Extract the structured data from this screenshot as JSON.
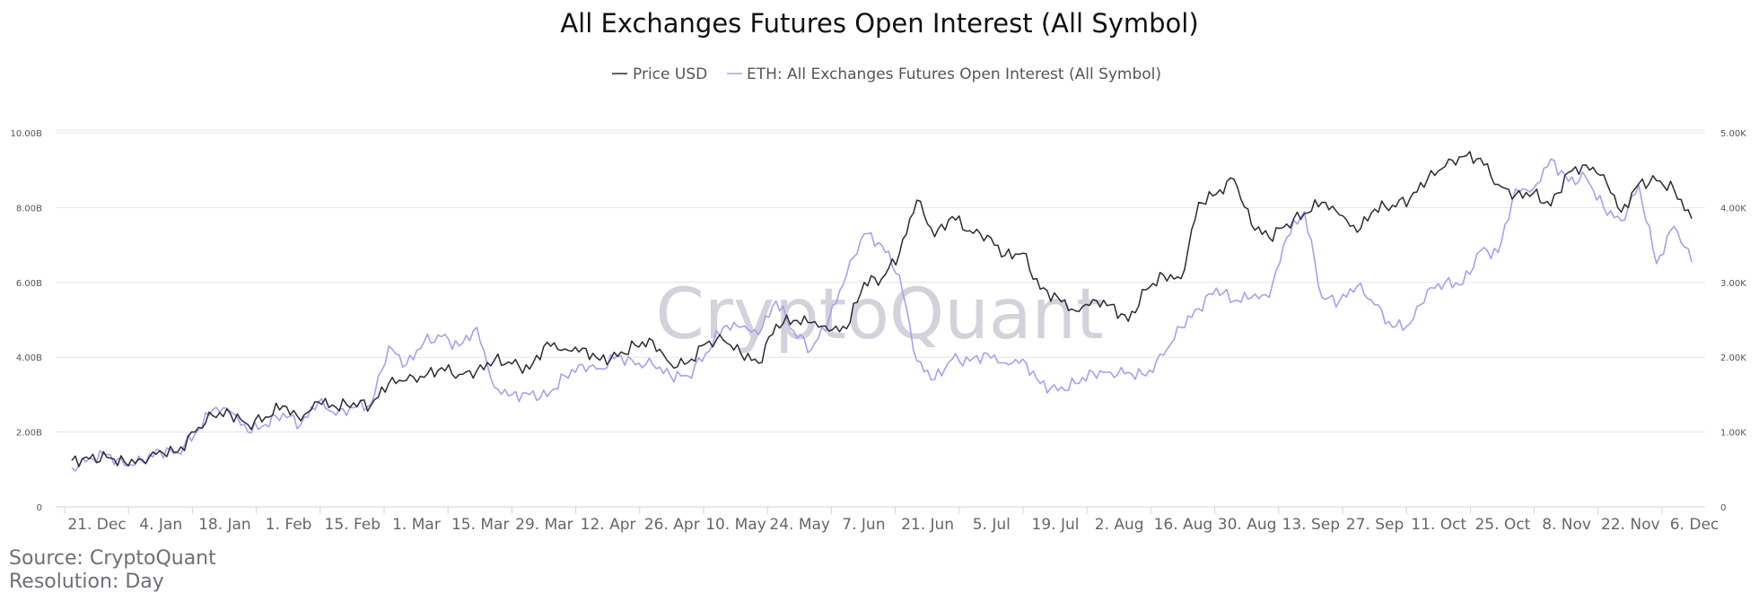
{
  "chart_data": {
    "type": "line",
    "title": "All Exchanges Futures Open Interest (All Symbol)",
    "watermark": "CryptoQuant",
    "legend_position": "top-center",
    "grid": true,
    "x_tick_labels": [
      "21. Dec",
      "4. Jan",
      "18. Jan",
      "1. Feb",
      "15. Feb",
      "1. Mar",
      "15. Mar",
      "29. Mar",
      "12. Apr",
      "26. Apr",
      "10. May",
      "24. May",
      "7. Jun",
      "21. Jun",
      "5. Jul",
      "19. Jul",
      "2. Aug",
      "16. Aug",
      "30. Aug",
      "13. Sep",
      "27. Sep",
      "11. Oct",
      "25. Oct",
      "8. Nov",
      "22. Nov",
      "6. Dec"
    ],
    "y_left": {
      "min": 0,
      "max": 10,
      "tick_labels": [
        "0",
        "2.00B",
        "4.00B",
        "6.00B",
        "8.00B",
        "10.00B"
      ]
    },
    "y_right": {
      "min": 0,
      "max": 5,
      "tick_labels": [
        "0",
        "1.00K",
        "2.00K",
        "3.00K",
        "4.00K",
        "5.00K"
      ]
    },
    "series": [
      {
        "name": "Price USD",
        "axis": "right",
        "color": "#2b2b35",
        "values": [
          0.62,
          0.64,
          0.66,
          0.6,
          0.63,
          0.75,
          0.73,
          1.0,
          1.22,
          1.25,
          1.1,
          1.2,
          1.35,
          1.15,
          1.4,
          1.33,
          1.39,
          1.36,
          1.65,
          1.69,
          1.73,
          1.86,
          1.77,
          1.82,
          1.96,
          1.91,
          1.84,
          2.2,
          2.11,
          2.12,
          1.96,
          2.01,
          2.16,
          2.22,
          1.91,
          1.93,
          2.18,
          2.23,
          2.05,
          1.92,
          2.44,
          2.49,
          2.46,
          2.35,
          2.38,
          3.0,
          3.05,
          3.38,
          4.1,
          3.61,
          3.88,
          3.69,
          3.63,
          3.36,
          3.39,
          2.91,
          2.8,
          2.62,
          2.77,
          2.7,
          2.48,
          2.9,
          3.1,
          3.05,
          4.07,
          4.18,
          4.38,
          3.77,
          3.6,
          3.78,
          3.92,
          4.07,
          3.9,
          3.67,
          3.98,
          4.03,
          4.12,
          4.38,
          4.55,
          4.68,
          4.66,
          4.31,
          4.17,
          4.19,
          4.02,
          4.47,
          4.57,
          4.44,
          3.94,
          4.32,
          4.36,
          4.24,
          3.85
        ]
      },
      {
        "name": "ETH: All Exchanges Futures Open Interest (All Symbol)",
        "axis": "left",
        "color": "#a99ef2",
        "values": [
          1.05,
          1.3,
          1.4,
          1.1,
          1.2,
          1.5,
          1.45,
          1.95,
          2.6,
          2.55,
          2.0,
          2.2,
          2.5,
          2.2,
          2.8,
          2.45,
          2.65,
          2.75,
          4.3,
          3.8,
          4.4,
          4.55,
          4.3,
          4.8,
          3.2,
          3.0,
          3.0,
          2.95,
          3.5,
          3.8,
          3.7,
          4.05,
          3.8,
          3.8,
          3.5,
          3.5,
          4.1,
          4.8,
          4.8,
          4.6,
          5.5,
          4.7,
          4.2,
          5.0,
          6.2,
          7.3,
          7.0,
          6.2,
          3.9,
          3.4,
          3.95,
          3.9,
          4.1,
          3.85,
          3.95,
          3.3,
          3.1,
          3.3,
          3.6,
          3.6,
          3.6,
          3.5,
          4.05,
          4.8,
          5.3,
          5.85,
          5.5,
          5.6,
          5.6,
          7.2,
          7.9,
          5.6,
          5.5,
          5.9,
          5.4,
          4.8,
          4.9,
          5.8,
          6.0,
          5.95,
          6.85,
          6.8,
          8.5,
          8.5,
          9.3,
          8.7,
          8.8,
          8.0,
          7.65,
          8.6,
          6.5,
          7.5,
          6.55
        ]
      }
    ]
  },
  "footer": {
    "source": "Source: CryptoQuant",
    "resolution": "Resolution: Day"
  }
}
